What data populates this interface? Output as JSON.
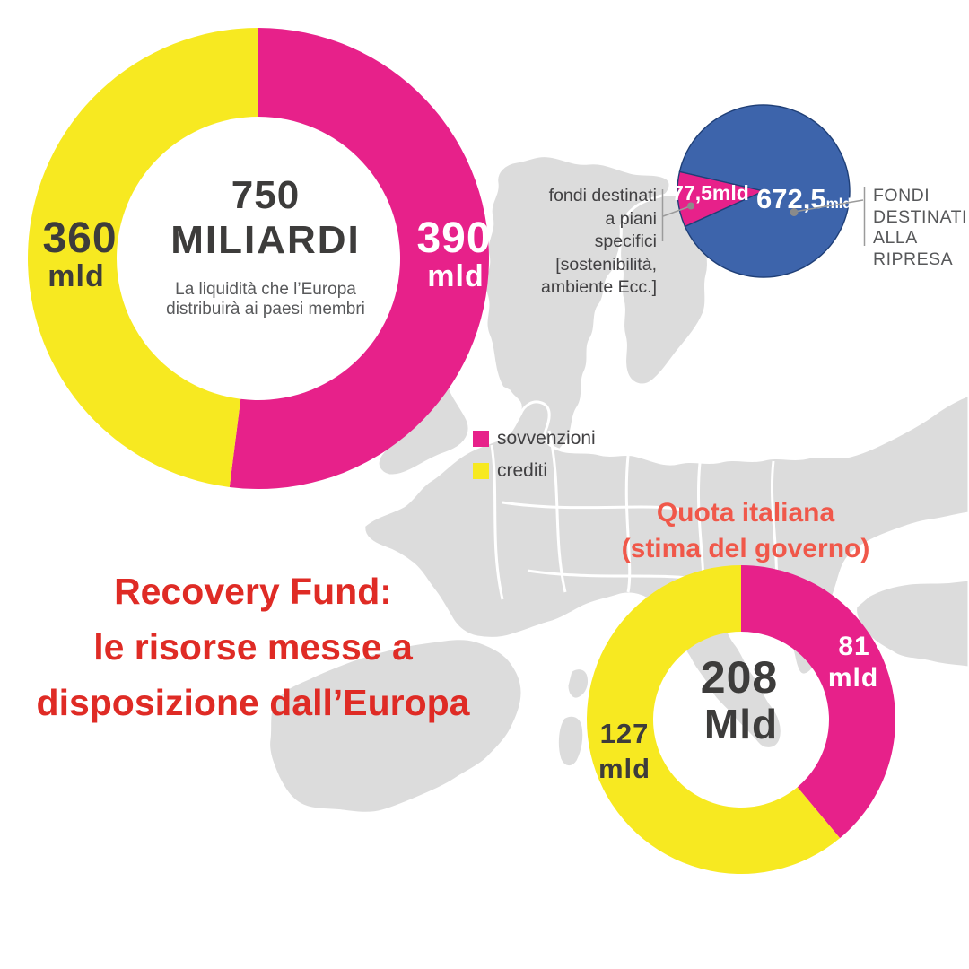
{
  "palette": {
    "magenta": "#e7218a",
    "yellow": "#f7e921",
    "blue": "#3d64ab",
    "dark_text": "#3d3c3b",
    "gray_text": "#58595b",
    "red_title": "#df2b25",
    "salmon_title": "#f0584a",
    "map_gray": "#dcdcdc"
  },
  "main_title": {
    "lines": [
      "Recovery Fund:",
      "le risorse messe a",
      "disposizione dall’Europa"
    ]
  },
  "legend": {
    "items": [
      {
        "label": "sovvenzioni",
        "color": "#e7218a"
      },
      {
        "label": "crediti",
        "color": "#f7e921"
      }
    ]
  },
  "eu_donut": {
    "center_value": "750",
    "center_unit": "MILIARDI",
    "subtitle_lines": [
      "La liquidità che l’Europa",
      "distribuirà ai paesi membri"
    ],
    "left_label": {
      "value": "360",
      "unit": "mld"
    },
    "right_label": {
      "value": "390",
      "unit": "mld"
    }
  },
  "pie": {
    "slice_label": "77,5mld",
    "big_value": "672,5",
    "big_unit": "mld",
    "left_annotation_lines": [
      "fondi destinati",
      "a piani",
      "specifici",
      "[sostenibilità,",
      "ambiente Ecc.]"
    ],
    "right_annotation_lines": [
      "FONDI",
      "DESTINATI",
      "ALLA",
      "RIPRESA"
    ]
  },
  "quota_donut": {
    "title_lines": [
      "Quota italiana",
      "(stima del governo)"
    ],
    "center_value": "208",
    "center_unit": "Mld",
    "left_label": {
      "value": "127",
      "unit": "mld"
    },
    "right_label": {
      "value": "81",
      "unit": "mld"
    }
  },
  "chart_data": [
    {
      "id": "eu-total-donut",
      "type": "donut",
      "title": "750 MILIARDI",
      "subtitle": "La liquidità che l’Europa distribuirà ai paesi membri",
      "total": 750,
      "unit": "mld",
      "segments": [
        {
          "label": "sovvenzioni",
          "value": 390,
          "color": "#e7218a"
        },
        {
          "label": "crediti",
          "value": 360,
          "color": "#f7e921"
        }
      ]
    },
    {
      "id": "fondi-pie",
      "type": "pie",
      "total": 750,
      "unit": "mld",
      "segments": [
        {
          "label": "FONDI DESTINATI ALLA RIPRESA",
          "value": 672.5,
          "color": "#3d64ab"
        },
        {
          "label": "fondi destinati a piani specifici [sostenibilità, ambiente Ecc.]",
          "value": 77.5,
          "color": "#e7218a"
        }
      ]
    },
    {
      "id": "quota-italiana-donut",
      "type": "donut",
      "title": "Quota italiana (stima del governo)",
      "total": 208,
      "unit": "mld",
      "segments": [
        {
          "label": "sovvenzioni",
          "value": 81,
          "color": "#e7218a"
        },
        {
          "label": "crediti",
          "value": 127,
          "color": "#f7e921"
        }
      ]
    }
  ]
}
